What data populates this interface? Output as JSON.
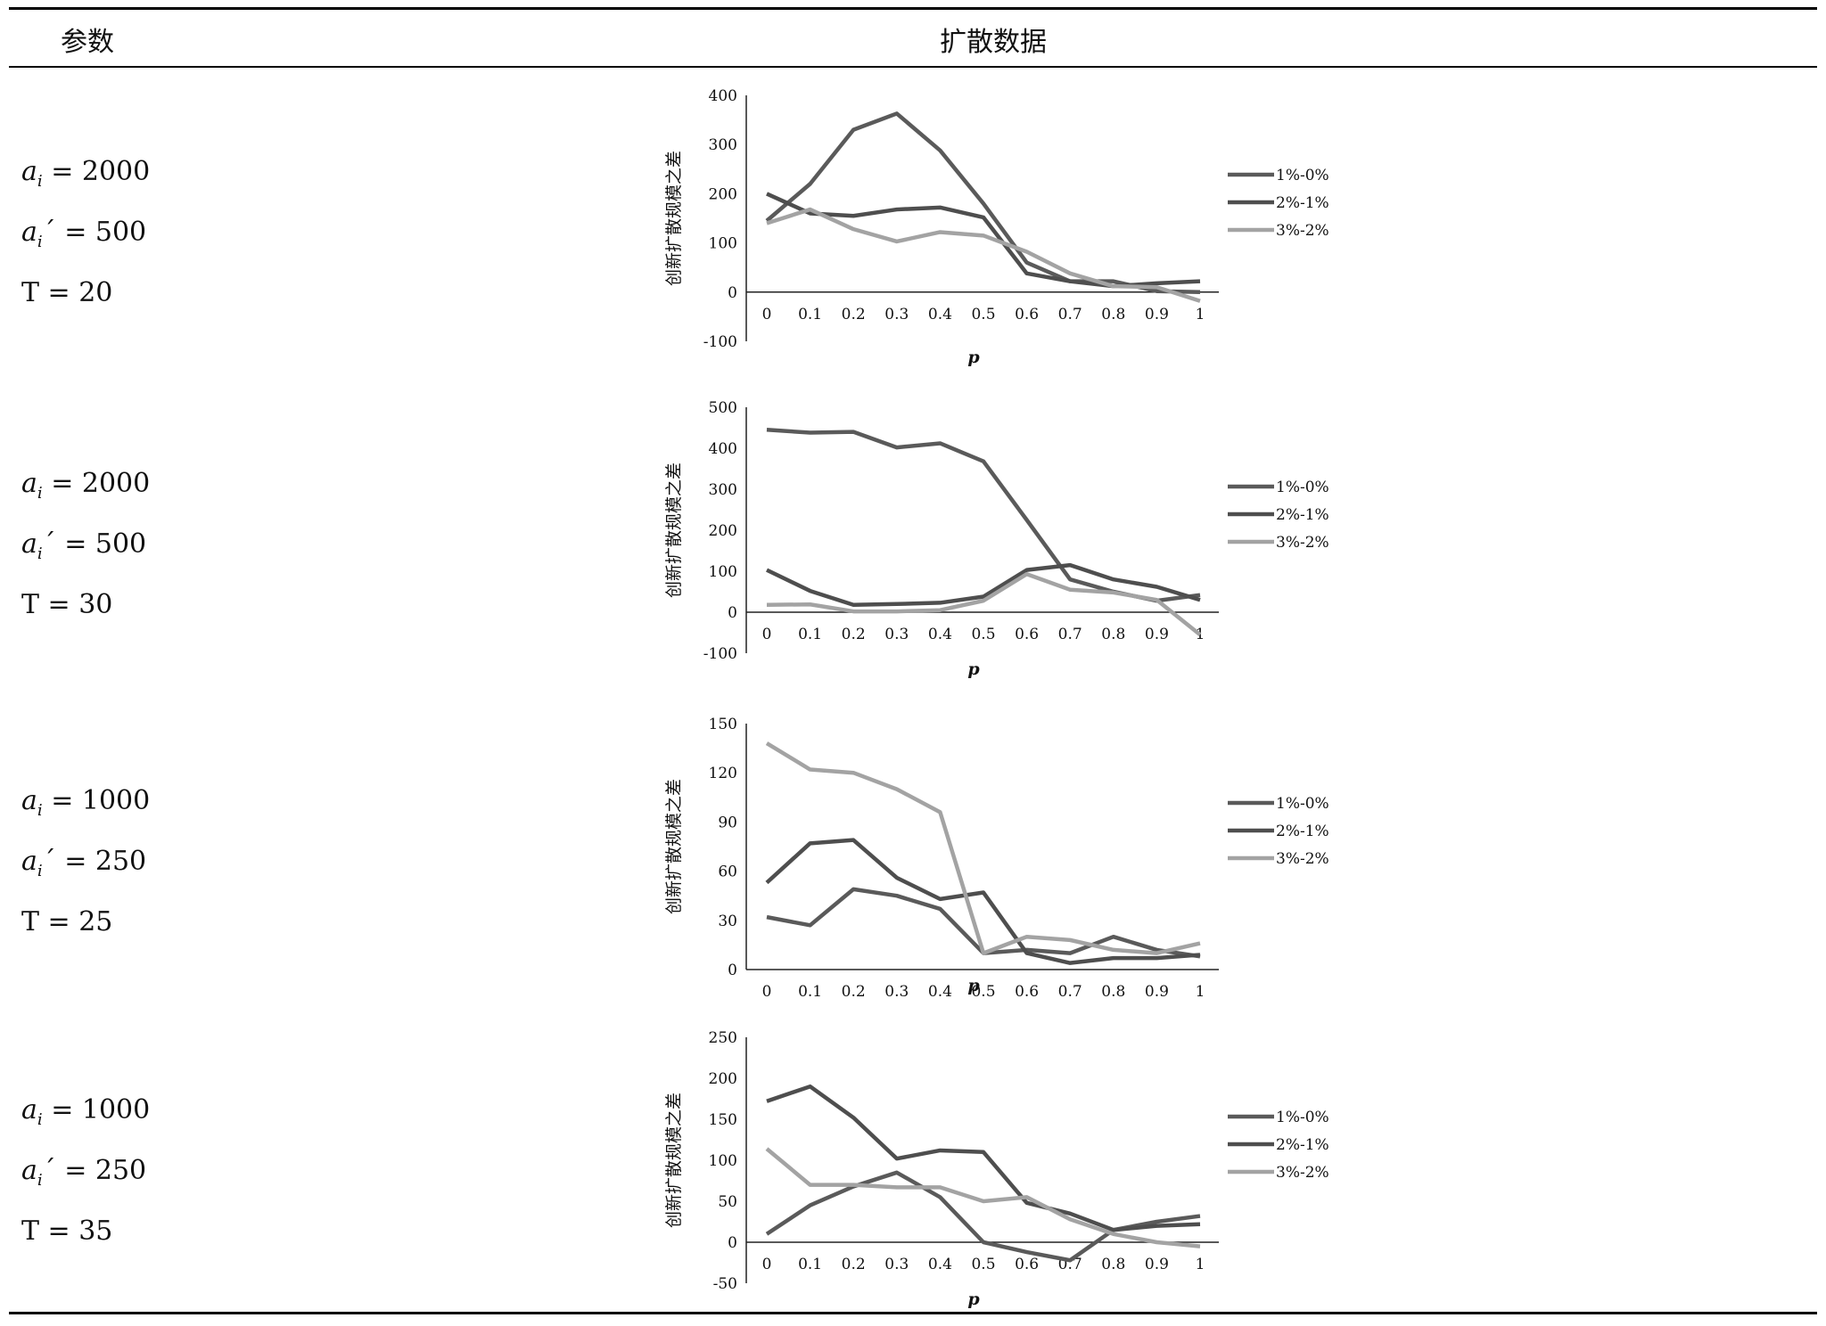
{
  "table": {
    "header": {
      "param_col": "参数",
      "data_col": "扩散数据"
    }
  },
  "rows": [
    {
      "ai_label": "a",
      "ai_sub": "i",
      "ai_eq": " =  2000",
      "aip_eq": "´  =  500",
      "T_text": "T = 20"
    },
    {
      "ai_label": "a",
      "ai_sub": "i",
      "ai_eq": " =  2000",
      "aip_eq": "´  =  500",
      "T_text": "T = 30"
    },
    {
      "ai_label": "a",
      "ai_sub": "i",
      "ai_eq": " =  1000",
      "aip_eq": "´  =  250",
      "T_text": "T = 25"
    },
    {
      "ai_label": "a",
      "ai_sub": "i",
      "ai_eq": " =  1000",
      "aip_eq": "´  =  250",
      "T_text": "T = 35"
    }
  ],
  "series_colors": [
    "#5a5a5a",
    "#4e4e4e",
    "#a3a3a3"
  ],
  "chart_data": [
    {
      "type": "line",
      "xlabel": "p",
      "ylabel": "创新扩散规模之差",
      "categories": [
        "0",
        "0.1",
        "0.2",
        "0.3",
        "0.4",
        "0.5",
        "0.6",
        "0.7",
        "0.8",
        "0.9",
        "1"
      ],
      "ylim": [
        -100,
        400
      ],
      "yticks": [
        -100,
        0,
        100,
        200,
        300,
        400
      ],
      "legend": "right",
      "series": [
        {
          "name": "1%-0%",
          "values": [
            145,
            220,
            330,
            363,
            288,
            180,
            60,
            22,
            22,
            2,
            0
          ]
        },
        {
          "name": "2%-1%",
          "values": [
            200,
            160,
            155,
            168,
            172,
            152,
            38,
            22,
            12,
            18,
            22
          ]
        },
        {
          "name": "3%-2%",
          "values": [
            140,
            168,
            128,
            103,
            122,
            115,
            82,
            38,
            12,
            10,
            -18
          ]
        }
      ]
    },
    {
      "type": "line",
      "xlabel": "p",
      "ylabel": "创新扩散规模之差",
      "categories": [
        "0",
        "0.1",
        "0.2",
        "0.3",
        "0.4",
        "0.5",
        "0.6",
        "0.7",
        "0.8",
        "0.9",
        "1"
      ],
      "ylim": [
        -100,
        500
      ],
      "yticks": [
        -100,
        0,
        100,
        200,
        300,
        400,
        500
      ],
      "legend": "right",
      "series": [
        {
          "name": "1%-0%",
          "values": [
            445,
            438,
            440,
            402,
            412,
            368,
            225,
            80,
            50,
            28,
            42
          ]
        },
        {
          "name": "2%-1%",
          "values": [
            103,
            52,
            18,
            20,
            23,
            38,
            103,
            115,
            80,
            62,
            30
          ]
        },
        {
          "name": "3%-2%",
          "values": [
            18,
            19,
            2,
            2,
            5,
            28,
            93,
            55,
            48,
            30,
            -55
          ]
        }
      ]
    },
    {
      "type": "line",
      "xlabel": "p",
      "ylabel": "创新扩散规模之差",
      "categories": [
        "0",
        "0.1",
        "0.2",
        "0.3",
        "0.4",
        "0.5",
        "0.6",
        "0.7",
        "0.8",
        "0.9",
        "1"
      ],
      "ylim": [
        0,
        150
      ],
      "yticks": [
        0,
        30,
        60,
        90,
        120,
        150
      ],
      "legend": "right",
      "series": [
        {
          "name": "1%-0%",
          "values": [
            32,
            27,
            49,
            45,
            37,
            10,
            12,
            10,
            20,
            12,
            8
          ]
        },
        {
          "name": "2%-1%",
          "values": [
            53,
            77,
            79,
            56,
            43,
            47,
            10,
            4,
            7,
            7,
            9
          ]
        },
        {
          "name": "3%-2%",
          "values": [
            138,
            122,
            120,
            110,
            96,
            10,
            20,
            18,
            12,
            10,
            16
          ]
        }
      ]
    },
    {
      "type": "line",
      "xlabel": "p",
      "ylabel": "创新扩散规模之差",
      "categories": [
        "0",
        "0.1",
        "0.2",
        "0.3",
        "0.4",
        "0.5",
        "0.6",
        "0.7",
        "0.8",
        "0.9",
        "1"
      ],
      "ylim": [
        -50,
        250
      ],
      "yticks": [
        -50,
        0,
        50,
        100,
        150,
        200,
        250
      ],
      "legend": "right",
      "series": [
        {
          "name": "1%-0%",
          "values": [
            10,
            45,
            68,
            85,
            55,
            0,
            -12,
            -22,
            15,
            25,
            32
          ]
        },
        {
          "name": "2%-1%",
          "values": [
            172,
            190,
            152,
            102,
            112,
            110,
            48,
            35,
            15,
            20,
            22
          ]
        },
        {
          "name": "3%-2%",
          "values": [
            114,
            70,
            70,
            67,
            67,
            50,
            55,
            28,
            10,
            0,
            -5
          ]
        }
      ]
    }
  ]
}
